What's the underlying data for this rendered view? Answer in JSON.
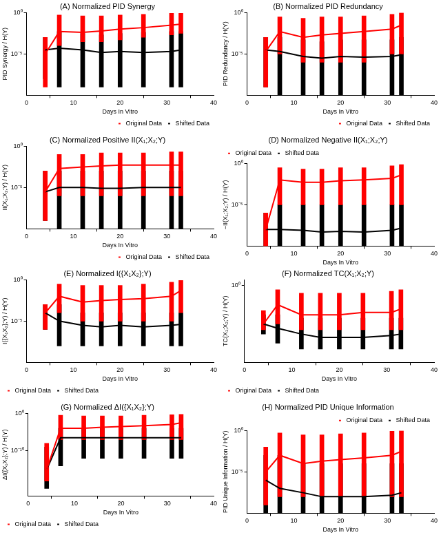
{
  "chart_data": [
    {
      "type": "line",
      "title": "(A) Normalized PID Synergy",
      "x_label": "Days In Vitro",
      "y_label": "PID Synergy / H(Y)",
      "log": "y",
      "grid": false,
      "legend": "lower right",
      "xlim": [
        0,
        40
      ],
      "xticks": [
        0,
        10,
        20,
        30,
        40
      ],
      "ylim": [
        1e-10,
        1
      ],
      "yticks": [
        {
          "value": 1,
          "label": "10⁰"
        },
        {
          "value": 1e-05,
          "label": "10⁻⁵"
        }
      ],
      "x": [
        4,
        7,
        12,
        16,
        20,
        25,
        31,
        33
      ],
      "series": [
        {
          "name": "Original Data",
          "color": "#ff0000",
          "values": [
            1e-05,
            0.005,
            0.004,
            0.006,
            0.01,
            0.015,
            0.03,
            0.04
          ],
          "ranges": [
            [
              1e-09,
              0.001
            ],
            [
              0.0001,
              0.5
            ],
            [
              0.0003,
              0.4
            ],
            [
              0.0003,
              0.4
            ],
            [
              0.0005,
              0.5
            ],
            [
              0.001,
              0.6
            ],
            [
              0.002,
              0.8
            ],
            [
              0.003,
              0.8
            ]
          ]
        },
        {
          "name": "Shifted Data",
          "color": "#000000",
          "values": [
            3e-05,
            5e-05,
            3e-05,
            1.5e-05,
            2e-05,
            1.5e-05,
            2e-05,
            3e-05
          ],
          "ranges": [
            [
              1e-08,
              0.001
            ],
            [
              1e-09,
              0.005
            ],
            [
              1e-09,
              0.003
            ],
            [
              1e-09,
              0.002
            ],
            [
              1e-09,
              0.003
            ],
            [
              1e-09,
              0.004
            ],
            [
              1e-09,
              0.005
            ],
            [
              1e-09,
              0.005
            ]
          ]
        }
      ]
    },
    {
      "type": "line",
      "title": "(B) Normalized PID Redundancy",
      "x_label": "Days In Vitro",
      "y_label": "PID Redundancy / H(Y)",
      "log": "y",
      "grid": false,
      "legend": "lower right",
      "xlim": [
        0,
        40
      ],
      "xticks": [
        0,
        10,
        20,
        30,
        40
      ],
      "ylim": [
        1e-10,
        1
      ],
      "yticks": [
        {
          "value": 1,
          "label": "10⁰"
        },
        {
          "value": 1e-05,
          "label": "10⁻⁵"
        }
      ],
      "x": [
        4,
        7,
        12,
        16,
        20,
        25,
        31,
        33
      ],
      "series": [
        {
          "name": "Original Data",
          "color": "#ff0000",
          "values": [
            2e-05,
            0.005,
            0.001,
            0.002,
            0.003,
            0.005,
            0.01,
            0.03
          ],
          "ranges": [
            [
              1e-09,
              0.001
            ],
            [
              1e-05,
              0.3
            ],
            [
              1e-06,
              0.2
            ],
            [
              1e-06,
              0.3
            ],
            [
              1e-06,
              0.3
            ],
            [
              1e-06,
              0.4
            ],
            [
              1e-05,
              0.6
            ],
            [
              1e-05,
              0.9
            ]
          ]
        },
        {
          "name": "Shifted Data",
          "color": "#000000",
          "values": [
            3e-05,
            2e-05,
            5e-06,
            3e-06,
            5e-06,
            4e-06,
            5e-06,
            8e-06
          ],
          "ranges": [
            [
              1e-09,
              0.001
            ],
            [
              1e-10,
              0.001
            ],
            [
              1e-10,
              0.0005
            ],
            [
              1e-10,
              0.0003
            ],
            [
              1e-10,
              0.0005
            ],
            [
              1e-10,
              0.0005
            ],
            [
              1e-10,
              0.0005
            ],
            [
              1e-10,
              0.001
            ]
          ]
        }
      ]
    },
    {
      "type": "line",
      "title": "(C) Normalized Positive II(X₁;X₂;Y)",
      "x_label": "Days In Vitro",
      "y_label": "II(X₁;X₂;Y) / H(Y)",
      "log": "y",
      "grid": false,
      "legend": "lower right",
      "xlim": [
        0,
        40
      ],
      "xticks": [
        0,
        10,
        20,
        30,
        40
      ],
      "ylim": [
        1e-10,
        1
      ],
      "yticks": [
        {
          "value": 1,
          "label": "10⁰"
        },
        {
          "value": 1e-05,
          "label": "10⁻⁵"
        }
      ],
      "x": [
        4,
        7,
        12,
        16,
        20,
        25,
        31,
        33
      ],
      "series": [
        {
          "name": "Original Data",
          "color": "#ff0000",
          "values": [
            3e-06,
            0.002,
            0.003,
            0.004,
            0.005,
            0.005,
            0.005,
            0.005
          ],
          "ranges": [
            [
              1e-09,
              0.001
            ],
            [
              1e-06,
              0.1
            ],
            [
              1e-06,
              0.1
            ],
            [
              1e-06,
              0.15
            ],
            [
              1e-06,
              0.15
            ],
            [
              1e-06,
              0.15
            ],
            [
              1e-06,
              0.2
            ],
            [
              1e-06,
              0.2
            ]
          ]
        },
        {
          "name": "Shifted Data",
          "color": "#000000",
          "values": [
            3e-06,
            1e-05,
            1e-05,
            8e-06,
            8e-06,
            1e-05,
            1e-05,
            1e-05
          ],
          "ranges": [
            [
              1e-09,
              0.001
            ],
            [
              1e-10,
              0.001
            ],
            [
              1e-10,
              0.001
            ],
            [
              1e-10,
              0.001
            ],
            [
              1e-10,
              0.001
            ],
            [
              1e-10,
              0.001
            ],
            [
              1e-10,
              0.001
            ],
            [
              1e-10,
              0.001
            ]
          ]
        }
      ]
    },
    {
      "type": "line",
      "title": "(D) Normalized Negative II(X₁;X₂;Y)",
      "x_label": "Days In Vitro",
      "y_label": "−II(X₁;X₂;Y) / H(Y)",
      "log": "y",
      "grid": false,
      "legend": "upper left",
      "xlim": [
        0,
        40
      ],
      "xticks": [
        0,
        10,
        20,
        30,
        40
      ],
      "ylim": [
        1e-10,
        1
      ],
      "yticks": [
        {
          "value": 1,
          "label": "10⁰"
        },
        {
          "value": 1e-05,
          "label": "10⁻⁵"
        }
      ],
      "x": [
        4,
        7,
        12,
        16,
        20,
        25,
        31,
        33
      ],
      "series": [
        {
          "name": "Original Data",
          "color": "#ff0000",
          "values": [
            1e-08,
            0.01,
            0.005,
            0.005,
            0.008,
            0.01,
            0.015,
            0.04
          ],
          "ranges": [
            [
              1e-10,
              1e-06
            ],
            [
              1e-05,
              0.3
            ],
            [
              1e-05,
              0.2
            ],
            [
              1e-05,
              0.2
            ],
            [
              1e-05,
              0.3
            ],
            [
              1e-05,
              0.3
            ],
            [
              1e-05,
              0.5
            ],
            [
              1e-05,
              0.7
            ]
          ]
        },
        {
          "name": "Shifted Data",
          "color": "#000000",
          "values": [
            1e-08,
            1e-08,
            8e-09,
            5e-09,
            6e-09,
            5e-09,
            8e-09,
            1.5e-08
          ],
          "ranges": [
            [
              1e-10,
              1e-06
            ],
            [
              1e-10,
              1e-05
            ],
            [
              1e-10,
              1e-05
            ],
            [
              1e-10,
              1e-05
            ],
            [
              1e-10,
              1e-05
            ],
            [
              1e-10,
              1e-05
            ],
            [
              1e-10,
              1e-05
            ],
            [
              1e-10,
              1e-05
            ]
          ]
        }
      ]
    },
    {
      "type": "line",
      "title": "(E) Normalized I({X₁X₂};Y)",
      "x_label": "Days In Vitro",
      "y_label": "I({X₁X₂};Y) / H(Y)",
      "log": "y",
      "grid": false,
      "legend": "lower left",
      "xlim": [
        0,
        40
      ],
      "xticks": [
        0,
        10,
        20,
        30,
        40
      ],
      "ylim": [
        1e-10,
        1
      ],
      "yticks": [
        {
          "value": 1,
          "label": "10⁰"
        },
        {
          "value": 1e-05,
          "label": "10⁻⁵"
        }
      ],
      "x": [
        4,
        7,
        12,
        16,
        20,
        25,
        31,
        33
      ],
      "series": [
        {
          "name": "Original Data",
          "color": "#ff0000",
          "values": [
            0.0001,
            0.01,
            0.002,
            0.003,
            0.004,
            0.005,
            0.01,
            0.05
          ],
          "ranges": [
            [
              1e-06,
              0.001
            ],
            [
              0.0001,
              0.3
            ],
            [
              1e-05,
              0.2
            ],
            [
              1e-05,
              0.2
            ],
            [
              1e-05,
              0.2
            ],
            [
              1e-05,
              0.3
            ],
            [
              1e-05,
              0.5
            ],
            [
              0.0001,
              0.8
            ]
          ]
        },
        {
          "name": "Shifted Data",
          "color": "#000000",
          "values": [
            0.0001,
            1e-05,
            3e-06,
            2e-06,
            3e-06,
            2e-06,
            3e-06,
            4e-06
          ],
          "ranges": [
            [
              1e-06,
              0.001
            ],
            [
              1e-08,
              0.001
            ],
            [
              1e-08,
              0.0001
            ],
            [
              1e-08,
              0.0001
            ],
            [
              1e-08,
              0.0001
            ],
            [
              1e-08,
              0.0001
            ],
            [
              1e-08,
              0.0001
            ],
            [
              1e-08,
              0.0001
            ]
          ]
        }
      ]
    },
    {
      "type": "line",
      "title": "(F) Normalized TC(X₁;X₂;Y)",
      "x_label": "Days In Vitro",
      "y_label": "TC(X₁;X₂;Y) / H(Y)",
      "log": "y",
      "grid": false,
      "legend": "lower left",
      "xlim": [
        0,
        40
      ],
      "xticks": [
        0,
        10,
        20,
        30,
        40
      ],
      "ylim": [
        0.0001,
        2
      ],
      "yticks": [
        {
          "value": 1,
          "label": "10⁰"
        }
      ],
      "x": [
        4,
        7,
        12,
        16,
        20,
        25,
        31,
        33
      ],
      "series": [
        {
          "name": "Original Data",
          "color": "#ff0000",
          "values": [
            0.01,
            0.1,
            0.03,
            0.03,
            0.03,
            0.04,
            0.04,
            0.06
          ],
          "ranges": [
            [
              0.005,
              0.05
            ],
            [
              0.01,
              0.6
            ],
            [
              0.005,
              0.4
            ],
            [
              0.005,
              0.4
            ],
            [
              0.005,
              0.4
            ],
            [
              0.005,
              0.4
            ],
            [
              0.005,
              0.5
            ],
            [
              0.005,
              0.6
            ]
          ]
        },
        {
          "name": "Shifted Data",
          "color": "#000000",
          "values": [
            0.01,
            0.006,
            0.003,
            0.002,
            0.002,
            0.002,
            0.0025,
            0.003
          ],
          "ranges": [
            [
              0.003,
              0.03
            ],
            [
              0.001,
              0.03
            ],
            [
              0.0005,
              0.02
            ],
            [
              0.0005,
              0.02
            ],
            [
              0.0005,
              0.02
            ],
            [
              0.0005,
              0.02
            ],
            [
              0.0005,
              0.02
            ],
            [
              0.0005,
              0.02
            ]
          ]
        }
      ]
    },
    {
      "type": "line",
      "title": "(G) Normalized ΔI({X₁X₂};Y)",
      "x_label": "Days In Vitro",
      "y_label": "ΔI({X₁X₂};Y) / H(Y)",
      "log": "y",
      "grid": false,
      "legend": "lower left",
      "xlim": [
        0,
        40
      ],
      "xticks": [
        0,
        10,
        20,
        30,
        40
      ],
      "ylim": [
        1e-22,
        1
      ],
      "yticks": [
        {
          "value": 1,
          "label": "10⁰"
        },
        {
          "value": 1e-10,
          "label": "10⁻¹⁰"
        }
      ],
      "x": [
        4,
        7,
        12,
        16,
        20,
        25,
        31,
        33
      ],
      "series": [
        {
          "name": "Original Data",
          "color": "#ff0000",
          "values": [
            1e-15,
            0.0001,
            0.0001,
            0.0002,
            0.0003,
            0.0005,
            0.001,
            0.003
          ],
          "ranges": [
            [
              1e-18,
              1e-08
            ],
            [
              1e-07,
              0.3
            ],
            [
              1e-07,
              0.2
            ],
            [
              1e-07,
              0.2
            ],
            [
              1e-07,
              0.2
            ],
            [
              1e-07,
              0.3
            ],
            [
              1e-07,
              0.4
            ],
            [
              1e-07,
              0.5
            ]
          ]
        },
        {
          "name": "Shifted Data",
          "color": "#000000",
          "values": [
            1e-15,
            3e-07,
            3e-07,
            3e-07,
            3e-07,
            3e-07,
            3e-07,
            3e-07
          ],
          "ranges": [
            [
              1e-20,
              1e-09
            ],
            [
              1e-14,
              0.0001
            ],
            [
              1e-12,
              0.0001
            ],
            [
              1e-12,
              0.0001
            ],
            [
              1e-12,
              0.0001
            ],
            [
              1e-12,
              0.0001
            ],
            [
              1e-12,
              0.0001
            ],
            [
              1e-12,
              0.0001
            ]
          ]
        }
      ]
    },
    {
      "type": "line",
      "title": "(H) Normalized PID Unique Information",
      "x_label": "Days In Vitro",
      "y_label": "PID Unique Information / H(Y)",
      "log": "y",
      "grid": false,
      "legend": "upper right",
      "xlim": [
        0,
        40
      ],
      "xticks": [
        0,
        10,
        20,
        30,
        40
      ],
      "ylim": [
        1e-10,
        1
      ],
      "yticks": [
        {
          "value": 1,
          "label": "10⁰"
        },
        {
          "value": 1e-05,
          "label": "10⁻⁵"
        }
      ],
      "x": [
        4,
        7,
        12,
        16,
        20,
        25,
        31,
        33
      ],
      "series": [
        {
          "name": "Original Data",
          "color": "#ff0000",
          "values": [
            1e-05,
            0.001,
            0.0001,
            0.0002,
            0.0003,
            0.0005,
            0.001,
            0.003
          ],
          "ranges": [
            [
              1e-09,
              0.01
            ],
            [
              1e-08,
              0.5
            ],
            [
              1e-08,
              0.3
            ],
            [
              1e-08,
              0.3
            ],
            [
              1e-08,
              0.4
            ],
            [
              1e-08,
              0.5
            ],
            [
              1e-08,
              0.8
            ],
            [
              1e-08,
              0.9
            ]
          ]
        },
        {
          "name": "Shifted Data",
          "color": "#000000",
          "values": [
            1e-06,
            1e-07,
            3e-08,
            1e-08,
            1e-08,
            1e-08,
            1.5e-08,
            3e-08
          ],
          "ranges": [
            [
              1e-10,
              0.001
            ],
            [
              1e-10,
              0.001
            ],
            [
              1e-10,
              0.0001
            ],
            [
              1e-10,
              0.0001
            ],
            [
              1e-10,
              0.0001
            ],
            [
              1e-10,
              0.0001
            ],
            [
              1e-10,
              0.0001
            ],
            [
              1e-10,
              0.0001
            ]
          ]
        }
      ]
    }
  ]
}
